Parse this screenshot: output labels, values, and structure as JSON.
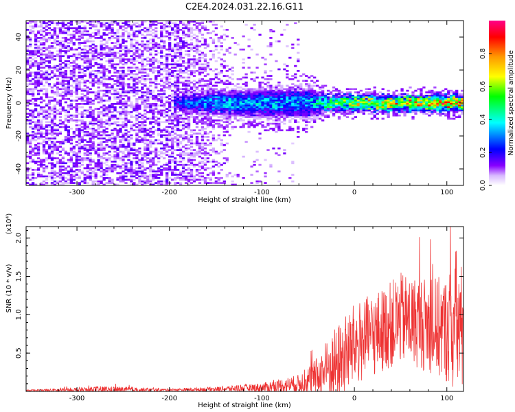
{
  "title": "C2E4.2024.031.22.16.G11",
  "chart_data": [
    {
      "type": "heatmap",
      "xlabel": "Height of straight line (km)",
      "ylabel": "Frequency (Hz)",
      "xlim": [
        -355,
        118
      ],
      "ylim": [
        -50,
        50
      ],
      "x_ticks": [
        -300,
        -200,
        -100,
        0,
        100
      ],
      "y_ticks": [
        -40,
        -20,
        0,
        20,
        40
      ],
      "colorbar": {
        "label": "Normalized spectral amplitude",
        "range": [
          0.0,
          1.0
        ],
        "ticks": [
          "0.0",
          "0.2",
          "0.4",
          "0.6",
          "0.8"
        ],
        "tick_values": [
          0.0,
          0.2,
          0.4,
          0.6,
          0.8
        ],
        "colormap": "rainbow",
        "colors": [
          "#ffffff",
          "#8800ff",
          "#0000ff",
          "#00ffff",
          "#00ff00",
          "#ffff00",
          "#ff8000",
          "#ff0000",
          "#ff0080"
        ]
      },
      "signal_band": {
        "onset_height": -195,
        "center_freq": 0,
        "description_points": [
          {
            "x": -190,
            "width": 6,
            "amp": 0.25
          },
          {
            "x": -150,
            "width": 8,
            "amp": 0.35
          },
          {
            "x": -100,
            "width": 9,
            "amp": 0.35
          },
          {
            "x": -50,
            "width": 10,
            "amp": 0.35
          },
          {
            "x": -30,
            "width": 5,
            "amp": 0.5
          },
          {
            "x": 0,
            "width": 5,
            "amp": 0.7
          },
          {
            "x": 50,
            "width": 5,
            "amp": 0.75
          },
          {
            "x": 100,
            "width": 5,
            "amp": 0.8
          }
        ]
      },
      "noise_region": {
        "x_start": -355,
        "x_end": -130,
        "amp_range": [
          0.0,
          0.12
        ]
      }
    },
    {
      "type": "line",
      "xlabel": "Height of straight line (km)",
      "ylabel": "SNR (10 * v/v)",
      "y_multiplier": "(x10⁴)",
      "xlim": [
        -355,
        118
      ],
      "ylim": [
        0,
        2.15
      ],
      "x_ticks": [
        -300,
        -200,
        -100,
        0,
        100
      ],
      "y_ticks": [
        0.5,
        1.0,
        1.5,
        2.0
      ],
      "y_tick_labels": [
        "0.5",
        "1.0",
        "1.5",
        "2.0"
      ],
      "series": [
        {
          "color": "#ee3333",
          "envelope": [
            {
              "x": -355,
              "base": 0.01,
              "spread": 0.01
            },
            {
              "x": -270,
              "base": 0.02,
              "spread": 0.05
            },
            {
              "x": -200,
              "base": 0.02,
              "spread": 0.015
            },
            {
              "x": -150,
              "base": 0.03,
              "spread": 0.03
            },
            {
              "x": -100,
              "base": 0.05,
              "spread": 0.06
            },
            {
              "x": -60,
              "base": 0.1,
              "spread": 0.12
            },
            {
              "x": -40,
              "base": 0.2,
              "spread": 0.25
            },
            {
              "x": -20,
              "base": 0.35,
              "spread": 0.5
            },
            {
              "x": 0,
              "base": 0.6,
              "spread": 0.55
            },
            {
              "x": 30,
              "base": 0.8,
              "spread": 0.55
            },
            {
              "x": 50,
              "base": 0.95,
              "spread": 0.6
            },
            {
              "x": 70,
              "base": 0.9,
              "spread": 0.6
            },
            {
              "x": 100,
              "base": 0.8,
              "spread": 0.7
            },
            {
              "x": 110,
              "base": 0.9,
              "spread": 1.0
            },
            {
              "x": 118,
              "base": 0.8,
              "spread": 0.8
            }
          ]
        }
      ]
    }
  ]
}
